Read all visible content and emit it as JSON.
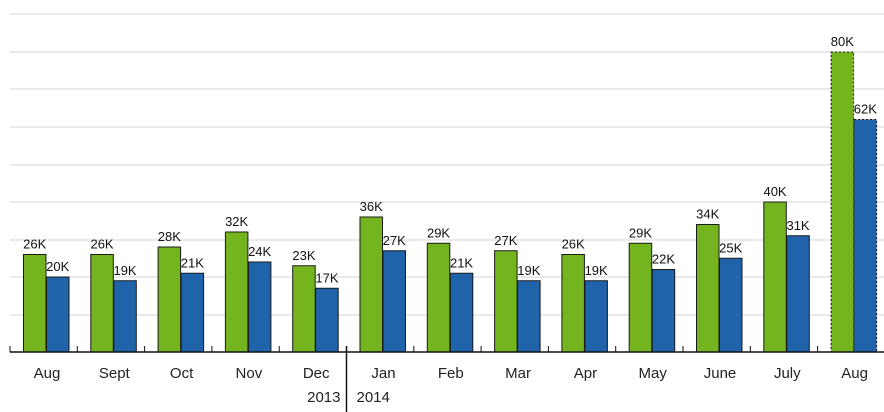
{
  "chart_data": {
    "type": "bar",
    "title": "",
    "xlabel": "",
    "ylabel": "",
    "ylim": [
      0,
      80
    ],
    "grid": true,
    "categories": [
      "Aug",
      "Sept",
      "Oct",
      "Nov",
      "Dec",
      "Jan",
      "Feb",
      "Mar",
      "Apr",
      "May",
      "June",
      "July",
      "Aug"
    ],
    "year_labels": [
      "2013",
      "2014"
    ],
    "year_divider_after_index": 4,
    "series": [
      {
        "values": [
          26,
          26,
          28,
          32,
          23,
          36,
          29,
          27,
          26,
          29,
          34,
          40,
          80
        ],
        "labels": [
          "26K",
          "26K",
          "28K",
          "32K",
          "23K",
          "36K",
          "29K",
          "27K",
          "26K",
          "29K",
          "34K",
          "40K",
          "80K"
        ],
        "color": "#74b41e",
        "projected_last": true
      },
      {
        "values": [
          20,
          19,
          21,
          24,
          17,
          27,
          21,
          19,
          19,
          22,
          25,
          31,
          62
        ],
        "labels": [
          "20K",
          "19K",
          "21K",
          "24K",
          "17K",
          "27K",
          "21K",
          "19K",
          "19K",
          "22K",
          "25K",
          "31K",
          "62K"
        ],
        "color": "#1f63ab",
        "projected_last": true
      }
    ]
  }
}
